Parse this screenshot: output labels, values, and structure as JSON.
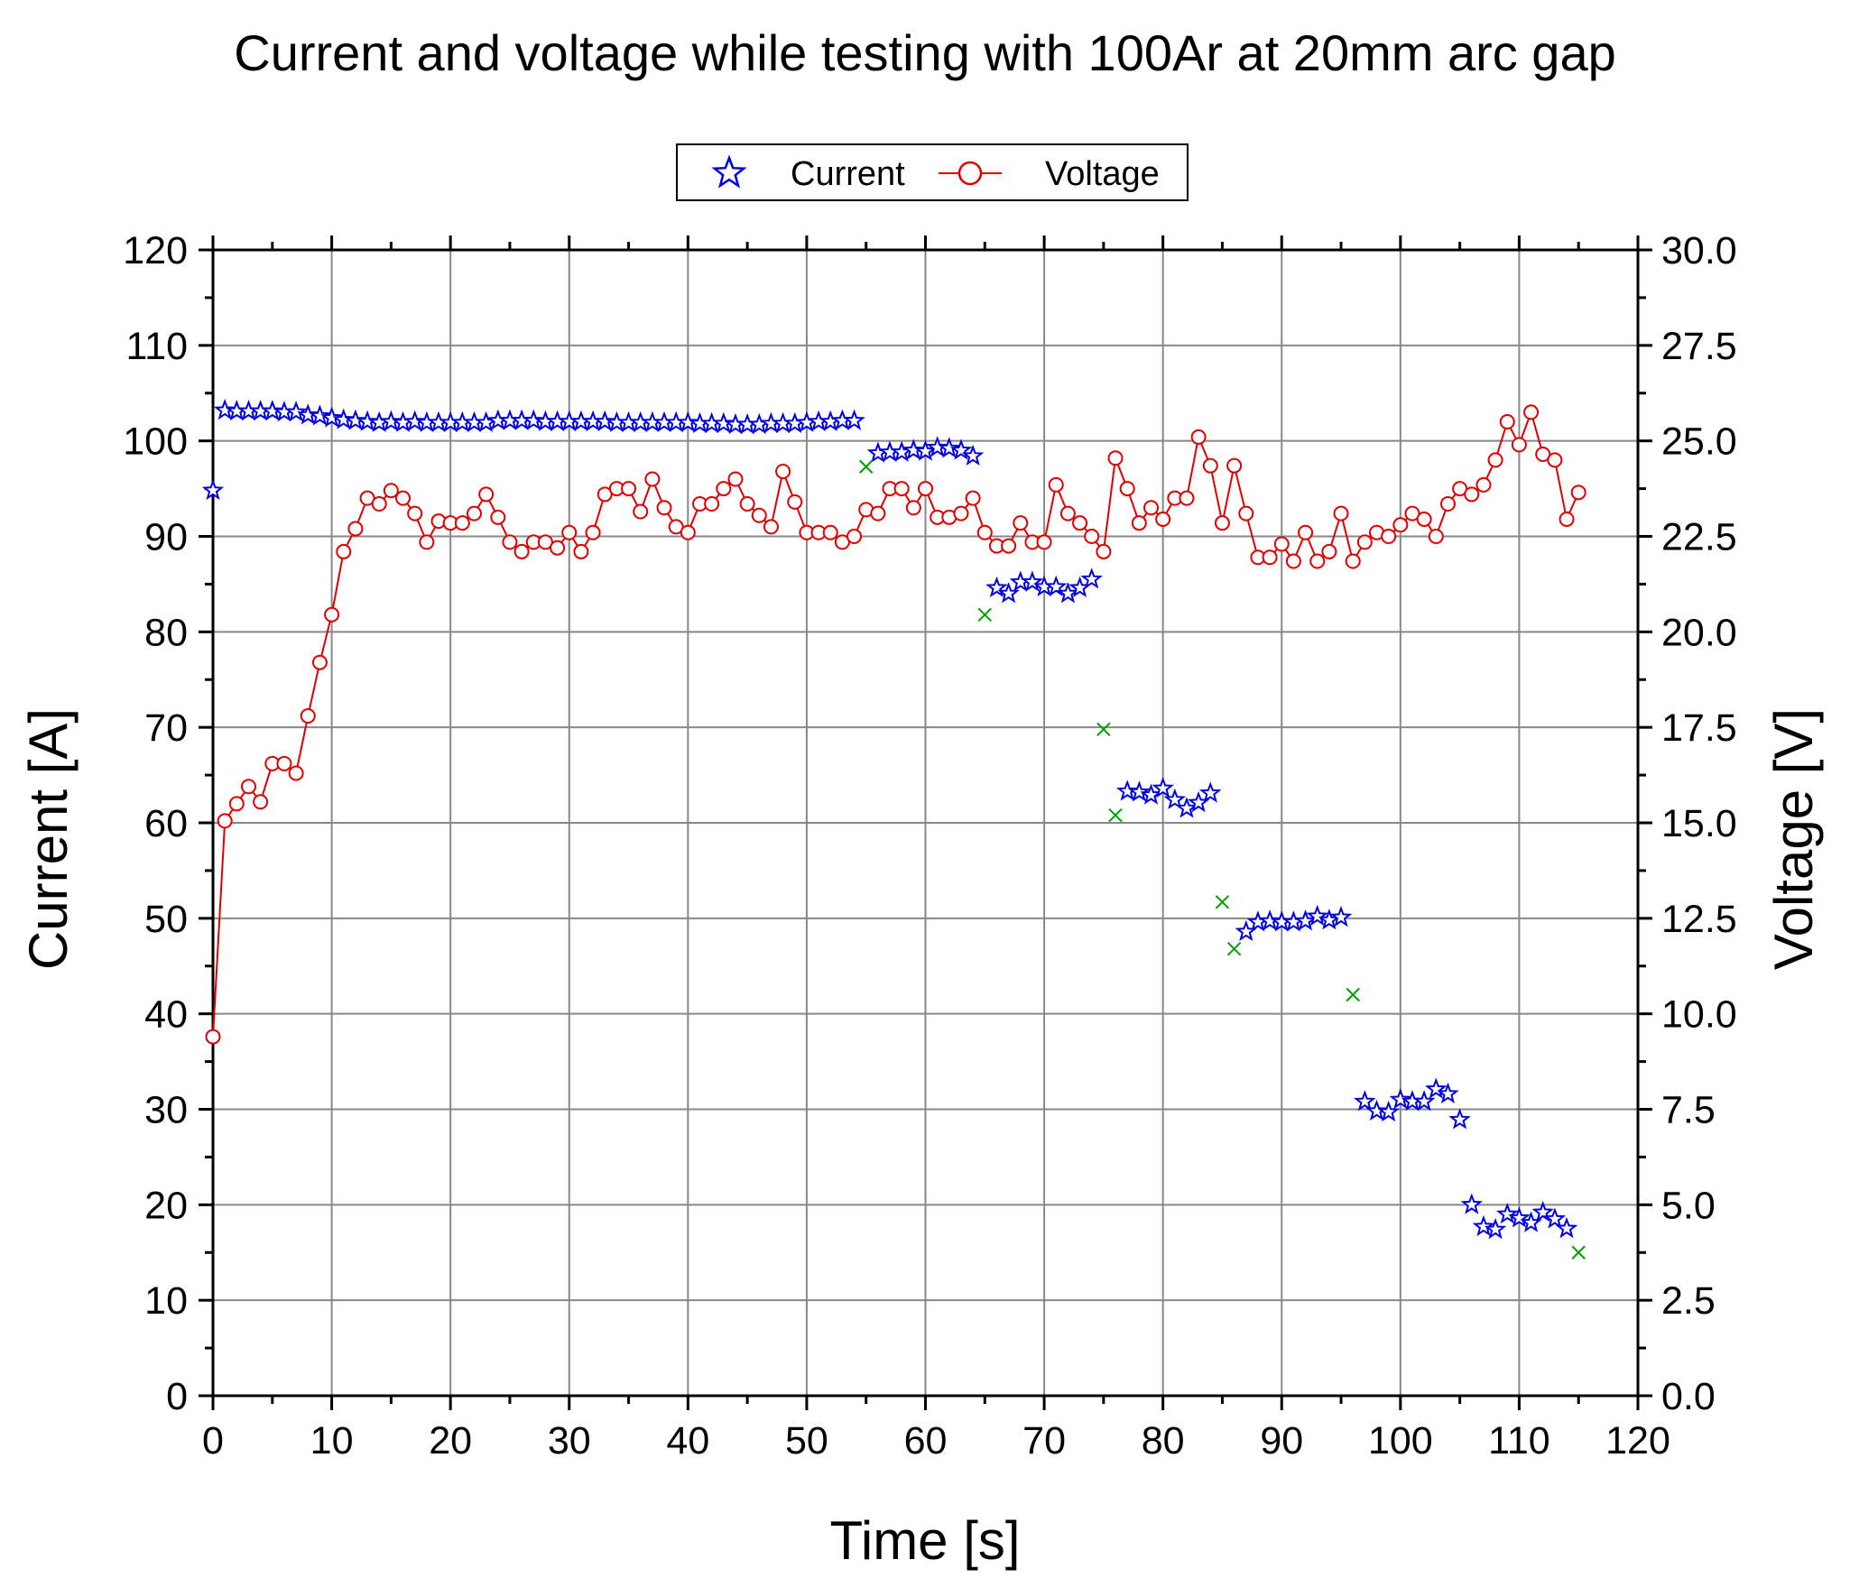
{
  "chart_data": {
    "type": "scatter",
    "title": "Current and voltage while testing with 100Ar at 20mm arc gap",
    "xlabel": "Time [s]",
    "ylabel_left": "Current [A]",
    "ylabel_right": "Voltage [V]",
    "xlim": [
      0,
      120
    ],
    "ylim_left": [
      0,
      120
    ],
    "ylim_right": [
      0,
      30
    ],
    "xticks": [
      "0",
      "10",
      "20",
      "30",
      "40",
      "50",
      "60",
      "70",
      "80",
      "90",
      "100",
      "110",
      "120"
    ],
    "yticks_left": [
      "0",
      "10",
      "20",
      "30",
      "40",
      "50",
      "60",
      "70",
      "80",
      "90",
      "100",
      "110",
      "120"
    ],
    "yticks_right": [
      "0.0",
      "2.5",
      "5.0",
      "7.5",
      "10.0",
      "12.5",
      "15.0",
      "17.5",
      "20.0",
      "22.5",
      "25.0",
      "27.5",
      "30.0"
    ],
    "grid": true,
    "legend": {
      "placement": "top-center",
      "entries": [
        "Current",
        "Voltage"
      ]
    },
    "colors": {
      "current": "#0000e0",
      "voltage": "#e00000",
      "extra": "#00a000",
      "grid": "#888888"
    },
    "series": [
      {
        "name": "Current",
        "axis": "left",
        "marker": "star",
        "x": [
          0,
          1,
          2,
          3,
          4,
          5,
          6,
          7,
          8,
          9,
          10,
          11,
          12,
          13,
          14,
          15,
          16,
          17,
          18,
          19,
          20,
          21,
          22,
          23,
          24,
          25,
          26,
          27,
          28,
          29,
          30,
          31,
          32,
          33,
          34,
          35,
          36,
          37,
          38,
          39,
          40,
          41,
          42,
          43,
          44,
          45,
          46,
          47,
          48,
          49,
          50,
          51,
          52,
          53,
          54,
          56,
          57,
          58,
          59,
          60,
          61,
          62,
          63,
          64,
          66,
          67,
          68,
          69,
          70,
          71,
          72,
          73,
          74,
          77,
          78,
          79,
          80,
          81,
          82,
          83,
          84,
          87,
          88,
          89,
          90,
          91,
          92,
          93,
          94,
          95,
          97,
          98,
          99,
          100,
          101,
          102,
          103,
          104,
          105,
          106,
          107,
          108,
          109,
          110,
          111,
          112,
          113,
          114
        ],
        "y": [
          94.8,
          103.2,
          103.1,
          103.1,
          103.1,
          103.1,
          103,
          103,
          102.7,
          102.6,
          102.4,
          102.2,
          102.1,
          102,
          101.9,
          102,
          101.9,
          102,
          101.9,
          101.9,
          101.9,
          101.9,
          101.9,
          101.9,
          102.1,
          102.1,
          102.1,
          102.1,
          102,
          102,
          102,
          102,
          102,
          102,
          101.9,
          101.9,
          101.9,
          101.9,
          101.9,
          101.9,
          101.9,
          101.8,
          101.8,
          101.8,
          101.7,
          101.7,
          101.7,
          101.8,
          101.8,
          101.8,
          101.9,
          102,
          102,
          102.1,
          102.1,
          98.7,
          98.8,
          98.8,
          99,
          98.9,
          99.3,
          99.2,
          99,
          98.4,
          84.6,
          84,
          85.2,
          85.2,
          84.7,
          84.7,
          84,
          84.6,
          85.5,
          63.3,
          63.2,
          62.9,
          63.6,
          62.4,
          61.5,
          62.1,
          63.1,
          48.6,
          49.6,
          49.7,
          49.6,
          49.6,
          49.7,
          50.2,
          49.8,
          50.1,
          30.8,
          29.8,
          29.7,
          31,
          30.8,
          30.8,
          32.1,
          31.6,
          28.9,
          20,
          17.7,
          17.4,
          19,
          18.6,
          18.1,
          19.2,
          18.5,
          17.5
        ]
      },
      {
        "name": "Voltage",
        "axis": "right",
        "marker": "circle",
        "x": [
          0,
          1,
          2,
          3,
          4,
          5,
          6,
          7,
          8,
          9,
          10,
          11,
          12,
          13,
          14,
          15,
          16,
          17,
          18,
          19,
          20,
          21,
          22,
          23,
          24,
          25,
          26,
          27,
          28,
          29,
          30,
          31,
          32,
          33,
          34,
          35,
          36,
          37,
          38,
          39,
          40,
          41,
          42,
          43,
          44,
          45,
          46,
          47,
          48,
          49,
          50,
          51,
          52,
          53,
          54,
          55,
          56,
          57,
          58,
          59,
          60,
          61,
          62,
          63,
          64,
          65,
          66,
          67,
          68,
          69,
          70,
          71,
          72,
          73,
          74,
          75,
          76,
          77,
          78,
          79,
          80,
          81,
          82,
          83,
          84,
          85,
          86,
          87,
          88,
          89,
          90,
          91,
          92,
          93,
          94,
          95,
          96,
          97,
          98,
          99,
          100,
          101,
          102,
          103,
          104,
          105,
          106,
          107,
          108,
          109,
          110,
          111,
          112,
          113,
          114,
          115
        ],
        "y": [
          9.4,
          15.05,
          15.5,
          15.95,
          15.55,
          16.55,
          16.55,
          16.3,
          17.8,
          19.2,
          20.45,
          22.1,
          22.7,
          23.5,
          23.35,
          23.7,
          23.5,
          23.1,
          22.35,
          22.9,
          22.85,
          22.85,
          23.1,
          23.6,
          23,
          22.35,
          22.1,
          22.35,
          22.35,
          22.2,
          22.6,
          22.1,
          22.6,
          23.6,
          23.75,
          23.75,
          23.15,
          24,
          23.25,
          22.75,
          22.6,
          23.35,
          23.35,
          23.75,
          24,
          23.35,
          23.05,
          22.75,
          24.2,
          23.4,
          22.6,
          22.6,
          22.6,
          22.35,
          22.5,
          23.2,
          23.1,
          23.75,
          23.75,
          23.25,
          23.75,
          23,
          23,
          23.1,
          23.5,
          22.6,
          22.25,
          22.25,
          22.85,
          22.35,
          22.35,
          23.85,
          23.1,
          22.85,
          22.5,
          22.1,
          24.55,
          23.75,
          22.85,
          23.25,
          22.95,
          23.5,
          23.5,
          25.1,
          24.35,
          22.85,
          24.35,
          23.1,
          21.95,
          21.95,
          22.3,
          21.85,
          22.6,
          21.85,
          22.1,
          23.1,
          21.85,
          22.35,
          22.6,
          22.5,
          22.8,
          23.1,
          22.95,
          22.5,
          23.35,
          23.75,
          23.6,
          23.85,
          24.5,
          25.5,
          24.9,
          25.75,
          24.65,
          24.5,
          22.95,
          23.65
        ]
      },
      {
        "name": "",
        "axis": "left",
        "marker": "x",
        "x": [
          55,
          65,
          75,
          76,
          85,
          86,
          96,
          115
        ],
        "y": [
          97.3,
          81.8,
          69.8,
          60.8,
          51.7,
          46.8,
          42,
          15
        ]
      }
    ]
  }
}
